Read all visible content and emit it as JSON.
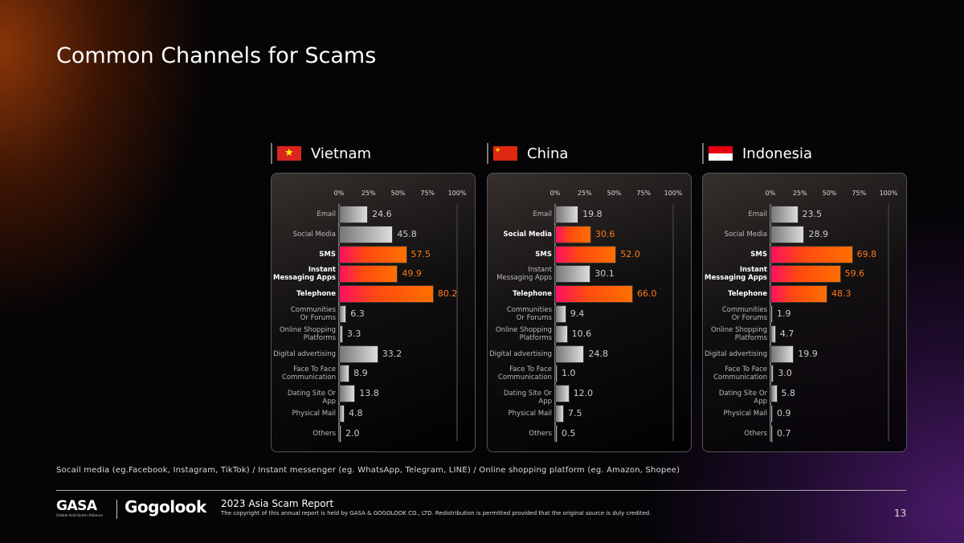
{
  "title": "Common Channels for Scams",
  "footnote": "Socail media (eg.Facebook, Instagram, TikTok) / Instant messenger (eg. WhatsApp, Telegram, LINE) / Online shopping platform (eg. Amazon, Shopee)",
  "footer": {
    "gasa": "GASA",
    "gasa_sub": "Global Anti-Scam Alliance",
    "gogolook": "Gogolook",
    "report": "2023 Asia Scam Report",
    "copyright": "The copyright of this annual report is held by GASA & GOGOLOOK CO., LTD. Redistribution is permitted provided that the original source is duly credited.",
    "page": "13"
  },
  "colors": {
    "highlight_start": "#ff1060",
    "highlight_end": "#ff7000",
    "highlight_value": "#ff7a1a",
    "normal_bar": "#cccccc"
  },
  "chart_data": [
    {
      "type": "bar",
      "orientation": "horizontal",
      "title": "Vietnam",
      "flag": "vietnam-flag",
      "categories": [
        "Email",
        "Social Media",
        "SMS",
        "Instant Messaging Apps",
        "Telephone",
        "Communities Or Forums",
        "Online Shopping Platforms",
        "Digital advertising",
        "Face To Face Communication",
        "Dating Site Or App",
        "Physical Mail",
        "Others"
      ],
      "values": [
        24.6,
        45.8,
        57.5,
        49.9,
        80.2,
        6.3,
        3.3,
        33.2,
        8.9,
        13.8,
        4.8,
        2.0
      ],
      "highlighted": [
        "SMS",
        "Instant Messaging Apps",
        "Telephone"
      ],
      "xticks": [
        "0%",
        "25%",
        "50%",
        "75%",
        "100%"
      ],
      "xlim": [
        0,
        100
      ]
    },
    {
      "type": "bar",
      "orientation": "horizontal",
      "title": "China",
      "flag": "china-flag",
      "categories": [
        "Email",
        "Social Media",
        "SMS",
        "Instant Messaging Apps",
        "Telephone",
        "Communities Or Forums",
        "Online Shopping Platforms",
        "Digital advertising",
        "Face To Face Communication",
        "Dating Site Or App",
        "Physical Mail",
        "Others"
      ],
      "values": [
        19.8,
        30.6,
        52.0,
        30.1,
        66.0,
        9.4,
        10.6,
        24.8,
        1.0,
        12.0,
        7.5,
        0.5
      ],
      "highlighted": [
        "Social Media",
        "SMS",
        "Telephone"
      ],
      "xticks": [
        "0%",
        "25%",
        "50%",
        "75%",
        "100%"
      ],
      "xlim": [
        0,
        100
      ]
    },
    {
      "type": "bar",
      "orientation": "horizontal",
      "title": "Indonesia",
      "flag": "indonesia-flag",
      "categories": [
        "Email",
        "Social Media",
        "SMS",
        "Instant Messaging Apps",
        "Telephone",
        "Communities Or Forums",
        "Online Shopping Platforms",
        "Digital advertising",
        "Face To Face Communication",
        "Dating Site Or App",
        "Physical Mail",
        "Others"
      ],
      "values": [
        23.5,
        28.9,
        69.8,
        59.6,
        48.3,
        1.9,
        4.7,
        19.9,
        3.0,
        5.8,
        0.9,
        0.7
      ],
      "highlighted": [
        "SMS",
        "Instant Messaging Apps",
        "Telephone"
      ],
      "xticks": [
        "0%",
        "25%",
        "50%",
        "75%",
        "100%"
      ],
      "xlim": [
        0,
        100
      ]
    }
  ]
}
